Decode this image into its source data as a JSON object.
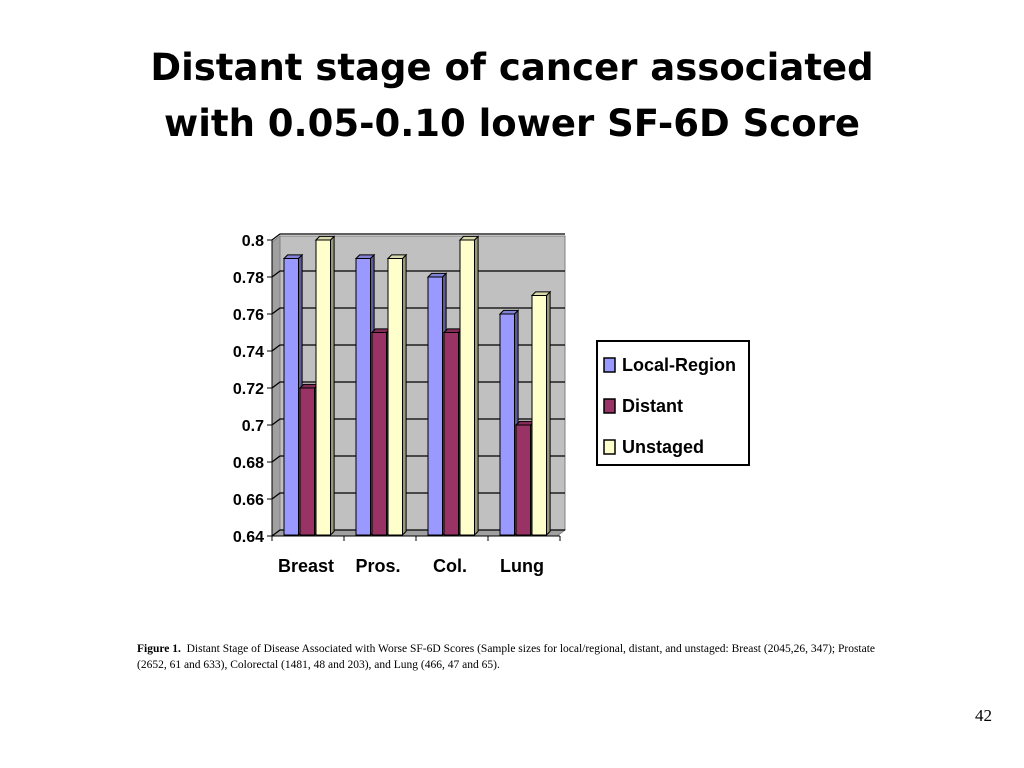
{
  "slide": {
    "title_line1": "Distant stage of cancer associated",
    "title_line2": "with 0.05-0.10 lower SF-6D Score",
    "caption_label": "Figure 1.",
    "caption_text": "Distant Stage of Disease Associated with Worse SF-6D Scores (Sample sizes for local/regional, distant, and unstaged: Breast (2045,26, 347); Prostate (2652, 61 and 633), Colorectal (1481, 48 and 203), and Lung (466, 47 and 65).",
    "page_number": "42"
  },
  "chart_data": {
    "type": "bar",
    "style": "3d-clustered",
    "categories": [
      "Breast",
      "Pros.",
      "Col.",
      "Lung"
    ],
    "series": [
      {
        "name": "Local-Region",
        "values": [
          0.79,
          0.79,
          0.78,
          0.76
        ],
        "color": "#9999FF"
      },
      {
        "name": "Distant",
        "values": [
          0.72,
          0.75,
          0.75,
          0.7
        ],
        "color": "#993366"
      },
      {
        "name": "Unstaged",
        "values": [
          0.8,
          0.79,
          0.8,
          0.77
        ],
        "color": "#FFFFCC"
      }
    ],
    "ylim": [
      0.64,
      0.8
    ],
    "yticks": [
      "0.64",
      "0.66",
      "0.68",
      "0.7",
      "0.72",
      "0.74",
      "0.76",
      "0.78",
      "0.8"
    ],
    "grid": true,
    "plot_background": "#C0C0C0",
    "legend_position": "right"
  }
}
